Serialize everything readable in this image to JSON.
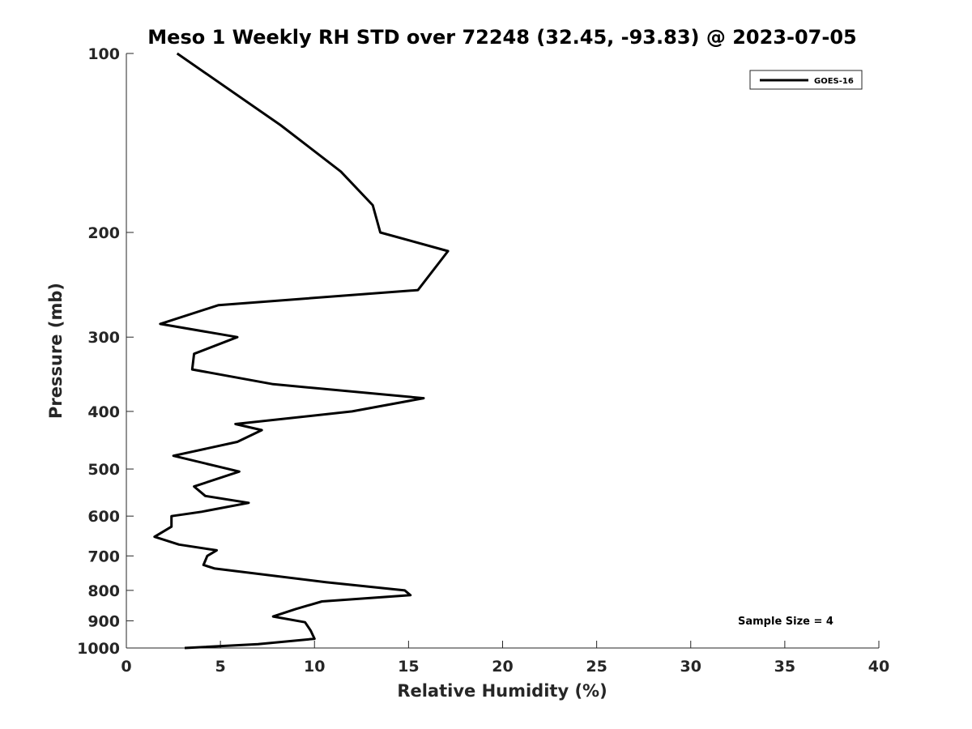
{
  "chart_data": {
    "type": "line",
    "title": "Meso 1 Weekly RH STD over 72248 (32.45, -93.83) @ 2023-07-05",
    "xlabel": "Relative Humidity (%)",
    "ylabel": "Pressure (mb)",
    "xlim": [
      0,
      40
    ],
    "ylim": [
      1000,
      100
    ],
    "y_scale": "log",
    "x_ticks": [
      0,
      5,
      10,
      15,
      20,
      25,
      30,
      35,
      40
    ],
    "x_tick_labels": [
      "0",
      "5",
      "10",
      "15",
      "20",
      "25",
      "30",
      "35",
      "40"
    ],
    "y_ticks": [
      100,
      200,
      300,
      400,
      500,
      600,
      700,
      800,
      900,
      1000
    ],
    "y_tick_labels": [
      "100",
      "200",
      "300",
      "400",
      "500",
      "600",
      "700",
      "800",
      "900",
      "1000"
    ],
    "grid": false,
    "legend_position": "top-right",
    "series": [
      {
        "name": "GOES-16",
        "color": "#000000",
        "x": [
          2.7,
          8.2,
          11.4,
          13.1,
          13.5,
          17.1,
          15.5,
          4.9,
          1.8,
          5.9,
          3.6,
          3.5,
          7.8,
          15.8,
          12.0,
          5.8,
          7.2,
          5.9,
          2.5,
          6.0,
          3.6,
          4.2,
          6.5,
          4.0,
          2.4,
          2.4,
          1.5,
          2.8,
          4.8,
          4.3,
          4.1,
          4.7,
          10.6,
          14.8,
          15.1,
          10.4,
          9.0,
          7.8,
          9.5,
          9.8,
          10.0,
          7.0,
          3.1
        ],
        "y": [
          100,
          132,
          158,
          180,
          200,
          215,
          250,
          265,
          285,
          300,
          320,
          340,
          360,
          380,
          400,
          420,
          430,
          450,
          475,
          505,
          535,
          555,
          570,
          590,
          600,
          625,
          650,
          670,
          685,
          700,
          725,
          735,
          775,
          800,
          815,
          835,
          860,
          885,
          905,
          935,
          965,
          985,
          1000
        ]
      }
    ]
  },
  "legend": {
    "entries": [
      "GOES-16"
    ]
  },
  "annotation": {
    "sample_size": "Sample Size = 4"
  }
}
